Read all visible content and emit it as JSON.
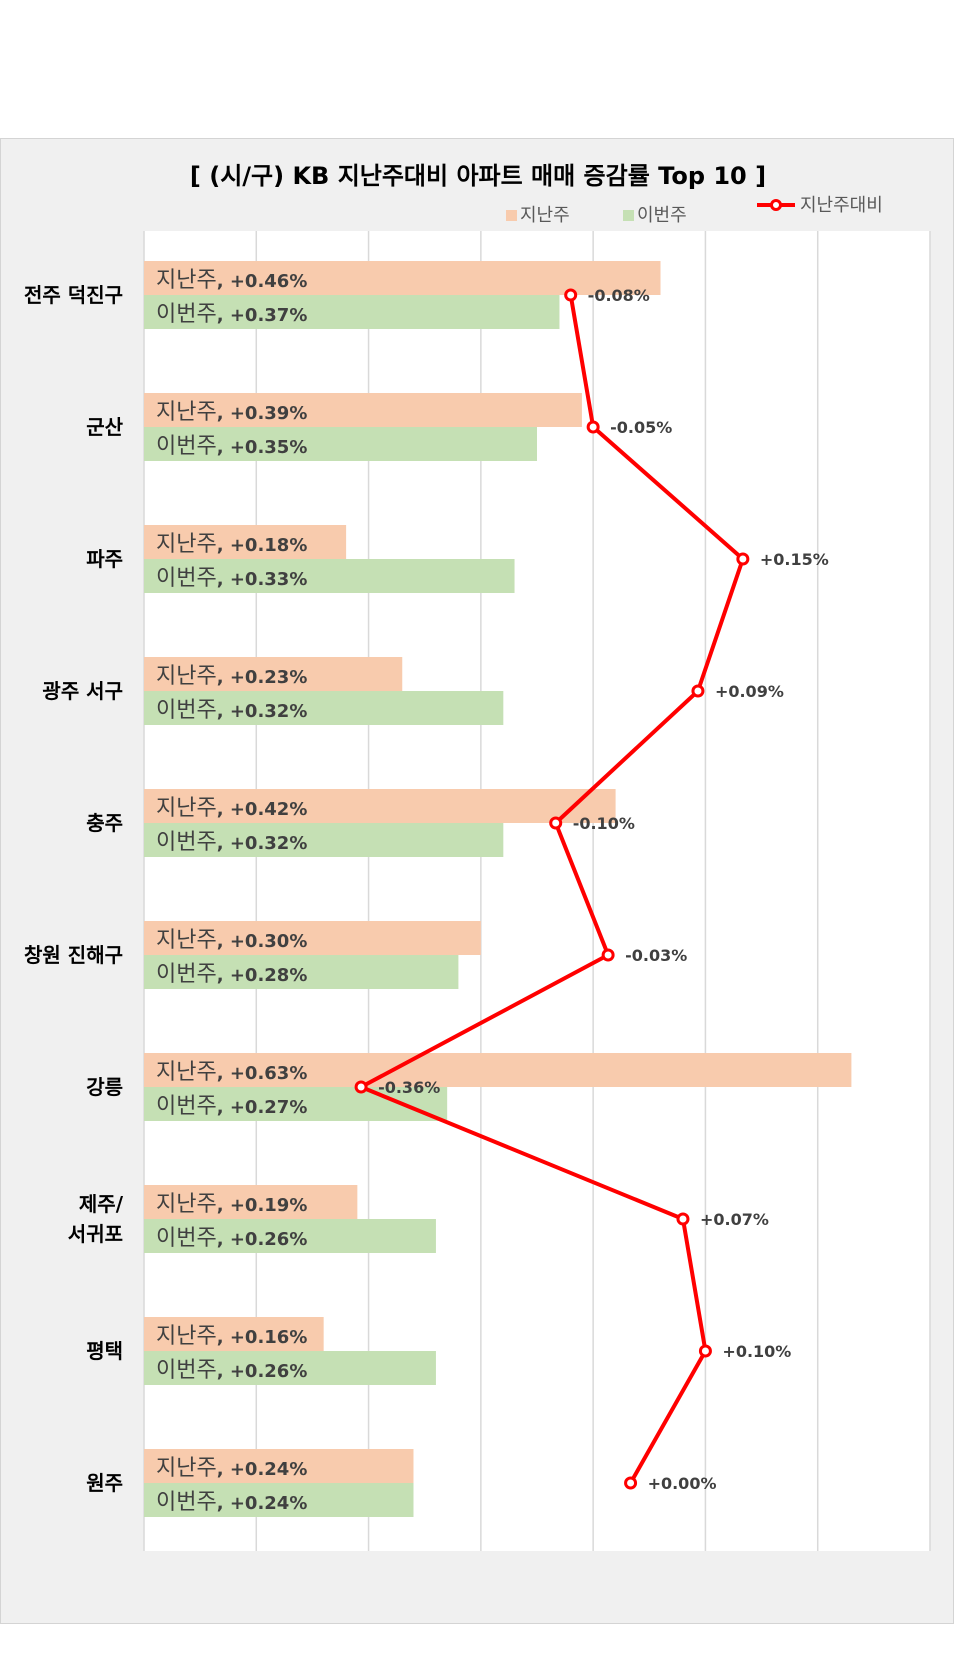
{
  "chart_data": {
    "type": "bar",
    "title": "[ (시/구) KB 지난주대비 아파트 매매 증감률 Top 10 ]",
    "categories": [
      [
        "전주 덕진구"
      ],
      [
        "군산"
      ],
      [
        "파주"
      ],
      [
        "광주 서구"
      ],
      [
        "충주"
      ],
      [
        "창원 진해구"
      ],
      [
        "강릉"
      ],
      [
        "제주/",
        "서귀포"
      ],
      [
        "평택"
      ],
      [
        "원주"
      ]
    ],
    "series": [
      {
        "name": "지난주",
        "type": "bar",
        "color": "#f8cbad",
        "values": [
          0.46,
          0.39,
          0.18,
          0.23,
          0.42,
          0.3,
          0.63,
          0.19,
          0.16,
          0.24
        ],
        "labels": [
          "+0.46%",
          "+0.39%",
          "+0.18%",
          "+0.23%",
          "+0.42%",
          "+0.30%",
          "+0.63%",
          "+0.19%",
          "+0.16%",
          "+0.24%"
        ]
      },
      {
        "name": "이번주",
        "type": "bar",
        "color": "#c5e0b4",
        "values": [
          0.37,
          0.35,
          0.33,
          0.32,
          0.32,
          0.28,
          0.27,
          0.26,
          0.26,
          0.24
        ],
        "labels": [
          "+0.37%",
          "+0.35%",
          "+0.33%",
          "+0.32%",
          "+0.32%",
          "+0.28%",
          "+0.27%",
          "+0.26%",
          "+0.26%",
          "+0.24%"
        ]
      },
      {
        "name": "지난주대비",
        "type": "line",
        "color": "#ff0000",
        "values": [
          -0.08,
          -0.05,
          0.15,
          0.09,
          -0.1,
          -0.03,
          -0.36,
          0.07,
          0.1,
          0.0
        ],
        "labels": [
          "-0.08%",
          "-0.05%",
          "+0.15%",
          "+0.09%",
          "-0.10%",
          "-0.03%",
          "-0.36%",
          "+0.07%",
          "+0.10%",
          "+0.00%"
        ]
      }
    ],
    "bar_xlim": [
      0,
      0.7
    ],
    "line_xlim": [
      -0.65,
      0.4
    ],
    "grid": true,
    "legend_position": "top-right",
    "orientation": "horizontal"
  }
}
